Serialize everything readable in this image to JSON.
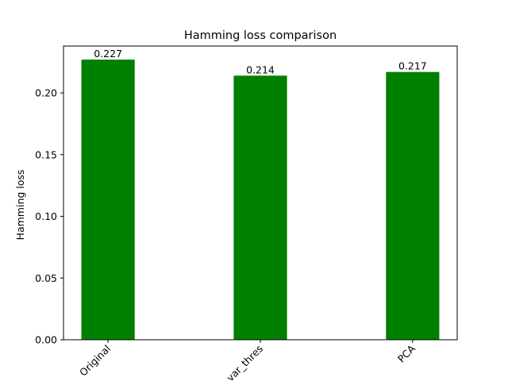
{
  "chart_data": {
    "type": "bar",
    "title": "Hamming loss comparison",
    "xlabel": "",
    "ylabel": "Hamming loss",
    "categories": [
      "Original",
      "var_thres",
      "PCA"
    ],
    "values": [
      0.227,
      0.214,
      0.217
    ],
    "value_labels": [
      "0.227",
      "0.214",
      "0.217"
    ],
    "ylim": [
      0,
      0.238
    ],
    "yticks": [
      0.0,
      0.05,
      0.1,
      0.15,
      0.2
    ],
    "ytick_labels": [
      "0.00",
      "0.05",
      "0.10",
      "0.15",
      "0.20"
    ],
    "xtick_rotation_deg": 45,
    "bar_color": "#008000",
    "grid": false,
    "legend": null
  }
}
